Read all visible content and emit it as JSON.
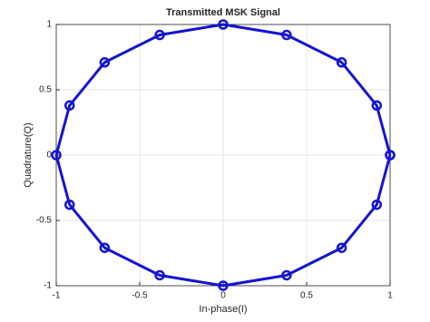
{
  "chart_data": {
    "type": "line",
    "title": "Transmitted MSK Signal",
    "x_label": "In-phase(I)",
    "y_label": "Quadrature(Q)",
    "x": [
      1,
      0.92,
      0.71,
      0.38,
      0,
      -0.38,
      -0.71,
      -0.92,
      -1,
      -0.92,
      -0.71,
      -0.38,
      0,
      0.38,
      0.71,
      0.92,
      1
    ],
    "y": [
      0,
      0.38,
      0.71,
      0.92,
      1,
      0.92,
      0.71,
      0.38,
      0,
      -0.38,
      -0.71,
      -0.92,
      -1,
      -0.92,
      -0.71,
      -0.38,
      0
    ],
    "color": "#1414d2",
    "marker": "circle",
    "xlim": [
      -1,
      1
    ],
    "ylim": [
      -1,
      1
    ],
    "xticks": [
      -1,
      -0.5,
      0,
      0.5,
      1
    ],
    "yticks": [
      -1,
      -0.5,
      0,
      0.5,
      1
    ],
    "grid": true
  }
}
